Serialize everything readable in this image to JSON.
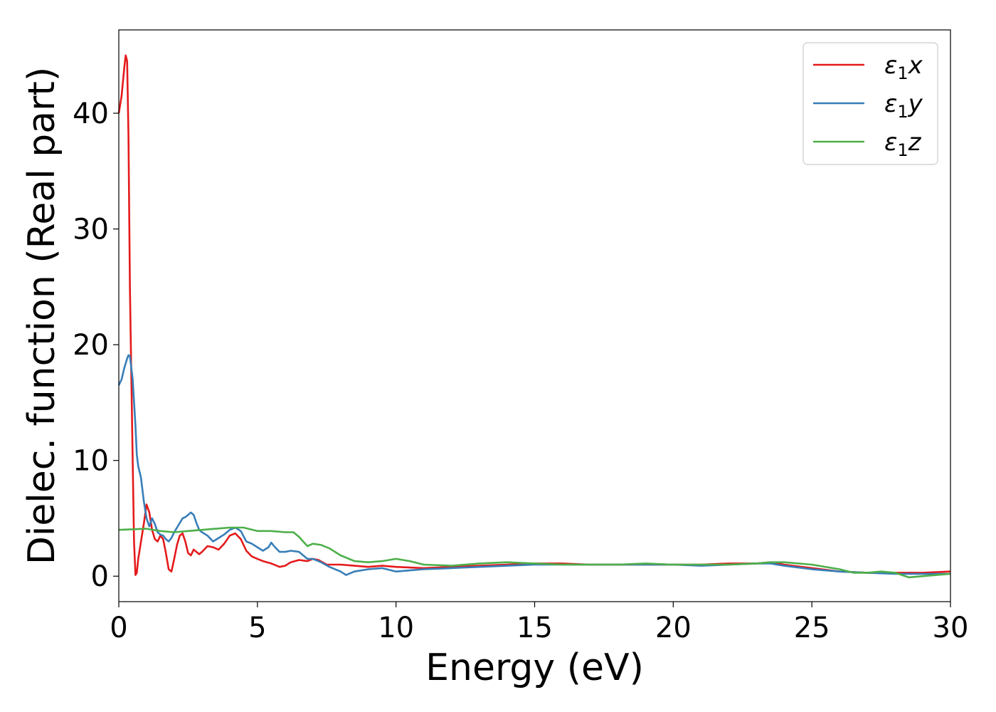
{
  "chart_data": {
    "type": "line",
    "title": "",
    "xlabel": "Energy (eV)",
    "ylabel": "Dielec. function (Real part)",
    "xlim": [
      0,
      30
    ],
    "ylim": [
      -2.2,
      47.2
    ],
    "xticks": [
      0,
      5,
      10,
      15,
      20,
      25,
      30
    ],
    "yticks": [
      0,
      10,
      20,
      30,
      40
    ],
    "grid": false,
    "legend": "top-right",
    "series": [
      {
        "name": "ε1x",
        "legend": {
          "base": "ε",
          "sub": "1",
          "tail": "x"
        },
        "color": "#e41a1c",
        "points": [
          [
            0,
            40.0
          ],
          [
            0.1,
            41.5
          ],
          [
            0.2,
            44.0
          ],
          [
            0.25,
            45.0
          ],
          [
            0.3,
            44.5
          ],
          [
            0.35,
            38.0
          ],
          [
            0.4,
            25.0
          ],
          [
            0.5,
            10.0
          ],
          [
            0.55,
            3.0
          ],
          [
            0.6,
            0.1
          ],
          [
            0.65,
            0.3
          ],
          [
            0.7,
            1.5
          ],
          [
            0.8,
            3.0
          ],
          [
            0.9,
            4.5
          ],
          [
            1.0,
            6.2
          ],
          [
            1.1,
            5.5
          ],
          [
            1.2,
            4.0
          ],
          [
            1.3,
            3.2
          ],
          [
            1.4,
            3.0
          ],
          [
            1.5,
            3.5
          ],
          [
            1.6,
            3.2
          ],
          [
            1.7,
            2.0
          ],
          [
            1.8,
            0.6
          ],
          [
            1.9,
            0.4
          ],
          [
            2.0,
            1.5
          ],
          [
            2.1,
            2.7
          ],
          [
            2.2,
            3.5
          ],
          [
            2.3,
            3.7
          ],
          [
            2.4,
            3.0
          ],
          [
            2.5,
            2.0
          ],
          [
            2.6,
            1.8
          ],
          [
            2.7,
            2.3
          ],
          [
            2.8,
            2.1
          ],
          [
            2.9,
            1.9
          ],
          [
            3.0,
            2.1
          ],
          [
            3.2,
            2.6
          ],
          [
            3.4,
            2.5
          ],
          [
            3.6,
            2.3
          ],
          [
            3.8,
            2.8
          ],
          [
            4.0,
            3.5
          ],
          [
            4.2,
            3.7
          ],
          [
            4.4,
            3.2
          ],
          [
            4.6,
            2.2
          ],
          [
            4.8,
            1.7
          ],
          [
            5.0,
            1.5
          ],
          [
            5.2,
            1.3
          ],
          [
            5.5,
            1.1
          ],
          [
            5.8,
            0.8
          ],
          [
            6.0,
            0.9
          ],
          [
            6.2,
            1.2
          ],
          [
            6.5,
            1.4
          ],
          [
            6.8,
            1.3
          ],
          [
            7.0,
            1.5
          ],
          [
            7.2,
            1.4
          ],
          [
            7.5,
            1.0
          ],
          [
            8.0,
            1.0
          ],
          [
            8.5,
            0.9
          ],
          [
            9.0,
            0.8
          ],
          [
            9.5,
            0.9
          ],
          [
            10.0,
            0.8
          ],
          [
            11,
            0.7
          ],
          [
            12,
            0.8
          ],
          [
            13,
            0.9
          ],
          [
            14,
            1.0
          ],
          [
            15,
            1.1
          ],
          [
            16,
            1.1
          ],
          [
            17,
            1.0
          ],
          [
            18,
            1.0
          ],
          [
            19,
            1.0
          ],
          [
            20,
            1.0
          ],
          [
            21,
            1.0
          ],
          [
            22,
            1.1
          ],
          [
            23,
            1.1
          ],
          [
            23.5,
            1.2
          ],
          [
            24,
            1.0
          ],
          [
            25,
            0.7
          ],
          [
            26,
            0.4
          ],
          [
            27,
            0.3
          ],
          [
            28,
            0.3
          ],
          [
            29,
            0.3
          ],
          [
            30,
            0.4
          ]
        ]
      },
      {
        "name": "ε1y",
        "legend": {
          "base": "ε",
          "sub": "1",
          "tail": "y"
        },
        "color": "#377eb8",
        "points": [
          [
            0,
            16.5
          ],
          [
            0.1,
            17.0
          ],
          [
            0.2,
            18.0
          ],
          [
            0.3,
            18.8
          ],
          [
            0.35,
            19.1
          ],
          [
            0.4,
            19.0
          ],
          [
            0.5,
            17.0
          ],
          [
            0.6,
            13.0
          ],
          [
            0.65,
            10.5
          ],
          [
            0.7,
            9.5
          ],
          [
            0.8,
            8.5
          ],
          [
            0.9,
            6.5
          ],
          [
            1.0,
            5.0
          ],
          [
            1.1,
            4.3
          ],
          [
            1.2,
            5.0
          ],
          [
            1.3,
            4.5
          ],
          [
            1.4,
            3.8
          ],
          [
            1.5,
            3.6
          ],
          [
            1.6,
            3.5
          ],
          [
            1.7,
            3.2
          ],
          [
            1.8,
            3.0
          ],
          [
            1.9,
            3.3
          ],
          [
            2.0,
            3.8
          ],
          [
            2.1,
            4.2
          ],
          [
            2.2,
            4.6
          ],
          [
            2.3,
            5.0
          ],
          [
            2.4,
            5.1
          ],
          [
            2.5,
            5.3
          ],
          [
            2.6,
            5.5
          ],
          [
            2.7,
            5.3
          ],
          [
            2.8,
            4.6
          ],
          [
            2.9,
            4.0
          ],
          [
            3.0,
            3.8
          ],
          [
            3.2,
            3.5
          ],
          [
            3.4,
            3.0
          ],
          [
            3.6,
            3.3
          ],
          [
            3.8,
            3.6
          ],
          [
            4.0,
            4.0
          ],
          [
            4.2,
            4.2
          ],
          [
            4.4,
            3.9
          ],
          [
            4.6,
            3.0
          ],
          [
            4.8,
            2.8
          ],
          [
            5.0,
            2.5
          ],
          [
            5.2,
            2.2
          ],
          [
            5.4,
            2.5
          ],
          [
            5.5,
            2.9
          ],
          [
            5.6,
            2.6
          ],
          [
            5.8,
            2.1
          ],
          [
            6.0,
            2.1
          ],
          [
            6.2,
            2.2
          ],
          [
            6.5,
            2.1
          ],
          [
            6.8,
            1.5
          ],
          [
            7.0,
            1.5
          ],
          [
            7.3,
            1.2
          ],
          [
            7.6,
            0.8
          ],
          [
            8.0,
            0.4
          ],
          [
            8.2,
            0.1
          ],
          [
            8.5,
            0.4
          ],
          [
            9.0,
            0.6
          ],
          [
            9.5,
            0.7
          ],
          [
            10.0,
            0.4
          ],
          [
            10.5,
            0.5
          ],
          [
            11,
            0.6
          ],
          [
            12,
            0.7
          ],
          [
            13,
            0.8
          ],
          [
            14,
            0.9
          ],
          [
            15,
            1.0
          ],
          [
            16,
            1.0
          ],
          [
            17,
            1.0
          ],
          [
            18,
            1.0
          ],
          [
            19,
            1.0
          ],
          [
            20,
            1.0
          ],
          [
            21,
            0.9
          ],
          [
            22,
            1.0
          ],
          [
            23,
            1.1
          ],
          [
            23.5,
            1.1
          ],
          [
            24,
            0.9
          ],
          [
            25,
            0.6
          ],
          [
            26,
            0.4
          ],
          [
            27,
            0.3
          ],
          [
            28,
            0.2
          ],
          [
            29,
            0.2
          ],
          [
            30,
            0.2
          ]
        ]
      },
      {
        "name": "ε1z",
        "legend": {
          "base": "ε",
          "sub": "1",
          "tail": "z"
        },
        "color": "#4daf4a",
        "points": [
          [
            0,
            4.0
          ],
          [
            1.0,
            4.1
          ],
          [
            1.5,
            3.9
          ],
          [
            2.0,
            3.8
          ],
          [
            2.5,
            3.9
          ],
          [
            3.0,
            4.0
          ],
          [
            3.5,
            4.1
          ],
          [
            4.0,
            4.2
          ],
          [
            4.5,
            4.2
          ],
          [
            5.0,
            3.9
          ],
          [
            5.5,
            3.9
          ],
          [
            6.0,
            3.8
          ],
          [
            6.3,
            3.8
          ],
          [
            6.5,
            3.4
          ],
          [
            6.8,
            2.6
          ],
          [
            7.0,
            2.8
          ],
          [
            7.3,
            2.7
          ],
          [
            7.6,
            2.4
          ],
          [
            8.0,
            1.8
          ],
          [
            8.5,
            1.3
          ],
          [
            9.0,
            1.2
          ],
          [
            9.5,
            1.3
          ],
          [
            10.0,
            1.5
          ],
          [
            10.5,
            1.3
          ],
          [
            11,
            1.0
          ],
          [
            12,
            0.9
          ],
          [
            13,
            1.1
          ],
          [
            14,
            1.2
          ],
          [
            15,
            1.1
          ],
          [
            16,
            1.0
          ],
          [
            17,
            1.0
          ],
          [
            18,
            1.0
          ],
          [
            19,
            1.1
          ],
          [
            20,
            1.0
          ],
          [
            21,
            1.0
          ],
          [
            22,
            1.0
          ],
          [
            23,
            1.1
          ],
          [
            23.5,
            1.2
          ],
          [
            24,
            1.2
          ],
          [
            25,
            1.0
          ],
          [
            26,
            0.6
          ],
          [
            26.5,
            0.3
          ],
          [
            27,
            0.3
          ],
          [
            27.5,
            0.4
          ],
          [
            28,
            0.3
          ],
          [
            28.5,
            -0.1
          ],
          [
            29,
            0.0
          ],
          [
            29.5,
            0.1
          ],
          [
            30,
            0.2
          ]
        ]
      }
    ]
  }
}
